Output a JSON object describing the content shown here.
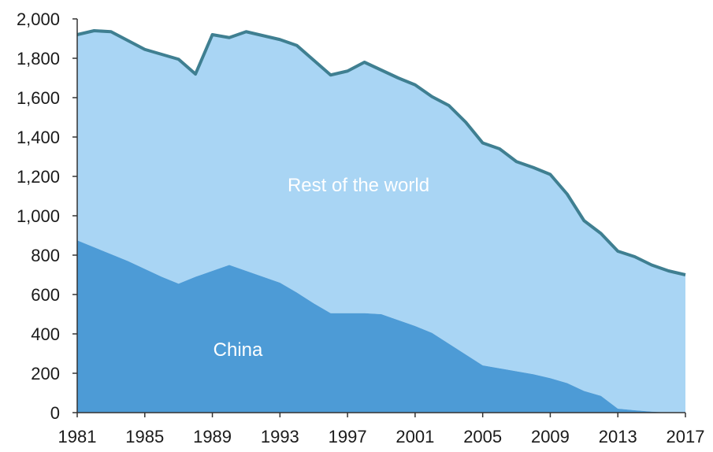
{
  "chart_data": {
    "type": "area",
    "title": "",
    "xlabel": "",
    "ylabel": "",
    "xlim": [
      1981,
      2017
    ],
    "ylim": [
      0,
      2000
    ],
    "grid": false,
    "legend": "none",
    "x_ticks": [
      "1981",
      "1985",
      "1989",
      "1993",
      "1997",
      "2001",
      "2005",
      "2009",
      "2013",
      "2017"
    ],
    "y_ticks": [
      "0",
      "200",
      "400",
      "600",
      "800",
      "1,000",
      "1,200",
      "1,400",
      "1,600",
      "1,800",
      "2,000"
    ],
    "x": [
      1981,
      1982,
      1983,
      1984,
      1985,
      1986,
      1987,
      1988,
      1989,
      1990,
      1991,
      1992,
      1993,
      1994,
      1995,
      1996,
      1997,
      1998,
      1999,
      2000,
      2001,
      2002,
      2003,
      2004,
      2005,
      2006,
      2007,
      2008,
      2009,
      2010,
      2011,
      2012,
      2013,
      2014,
      2015,
      2016,
      2017
    ],
    "series": [
      {
        "name": "China",
        "color": "#4d9bd6",
        "values": [
          875,
          840,
          805,
          770,
          730,
          690,
          655,
          690,
          720,
          750,
          720,
          690,
          660,
          610,
          555,
          505,
          505,
          505,
          500,
          470,
          440,
          405,
          350,
          295,
          240,
          225,
          210,
          195,
          175,
          150,
          110,
          85,
          20,
          12,
          5,
          0,
          0
        ]
      },
      {
        "name": "Rest of the world",
        "color": "#a9d5f4",
        "values": [
          1045,
          1100,
          1130,
          1120,
          1115,
          1130,
          1140,
          1030,
          1200,
          1155,
          1215,
          1225,
          1235,
          1255,
          1235,
          1210,
          1230,
          1275,
          1240,
          1230,
          1225,
          1200,
          1210,
          1180,
          1130,
          1115,
          1065,
          1050,
          1035,
          960,
          865,
          825,
          800,
          780,
          745,
          720,
          700
        ]
      }
    ],
    "total_line_color": "#3f7f91",
    "labels": {
      "rest": "Rest of the world",
      "china": "China"
    }
  }
}
